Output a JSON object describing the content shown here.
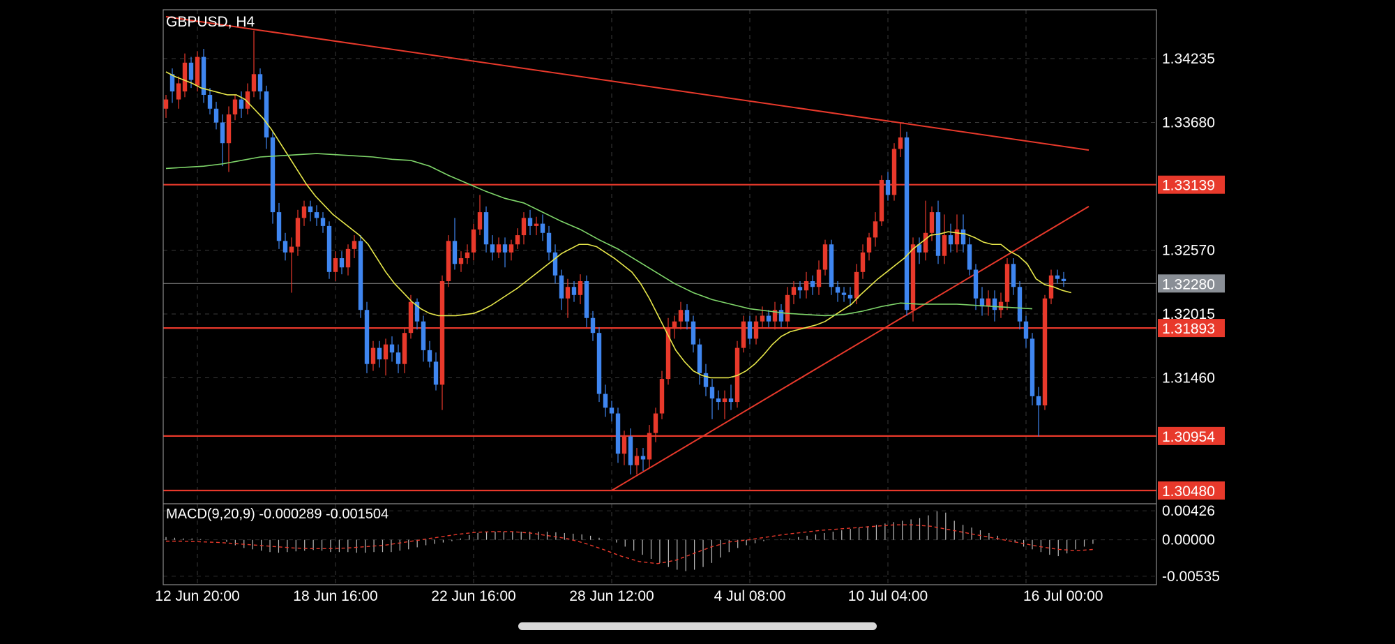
{
  "chart_data": {
    "type": "candlestick",
    "symbol_label": "GBPUSD, H4",
    "indicator_label": "MACD(9,20,9) -0.000289 -0.001504",
    "price_axis": {
      "ylim": [
        1.3048,
        1.3466
      ],
      "ticks": [
        "1.34235",
        "1.33680",
        "1.32570",
        "1.32015",
        "1.31460"
      ],
      "tick_values": [
        1.34235,
        1.3368,
        1.3257,
        1.32015,
        1.3146
      ]
    },
    "macd_axis": {
      "ylim": [
        -0.0066,
        0.0052
      ],
      "ticks": [
        "0.00426",
        "0.00000",
        "-0.00535"
      ],
      "tick_values": [
        0.00426,
        0.0,
        -0.00535
      ]
    },
    "x_axis": {
      "ticks": [
        "12 Jun 20:00",
        "18 Jun 16:00",
        "22 Jun 16:00",
        "28 Jun 12:00",
        "4 Jul 08:00",
        "10 Jul 04:00",
        "16 Jul 00:00"
      ],
      "tick_bar_index": [
        5,
        27,
        49,
        71,
        93,
        115,
        137
      ]
    },
    "horizontal_levels": [
      {
        "value": 1.33139,
        "label": "1.33139"
      },
      {
        "value": 1.31893,
        "label": "1.31893"
      },
      {
        "value": 1.30954,
        "label": "1.30954"
      },
      {
        "value": 1.3048,
        "label": "1.30480"
      }
    ],
    "current_price": {
      "value": 1.3228,
      "label": "1.32280"
    },
    "trendlines": [
      {
        "from": [
          0,
          1.346
        ],
        "to": [
          147,
          1.3344
        ]
      },
      {
        "from": [
          71,
          1.3048
        ],
        "to": [
          147,
          1.3295
        ]
      }
    ],
    "candles": [
      [
        1.338,
        1.3388,
        1.3372,
        1.3392
      ],
      [
        1.341,
        1.3395,
        1.3385,
        1.3415
      ],
      [
        1.3388,
        1.3402,
        1.338,
        1.3408
      ],
      [
        1.3395,
        1.342,
        1.339,
        1.3428
      ],
      [
        1.342,
        1.3405,
        1.3398,
        1.3425
      ],
      [
        1.34,
        1.3425,
        1.3395,
        1.343
      ],
      [
        1.3425,
        1.3392,
        1.3385,
        1.3432
      ],
      [
        1.3392,
        1.338,
        1.3375,
        1.3398
      ],
      [
        1.338,
        1.3368,
        1.3362,
        1.3386
      ],
      [
        1.3368,
        1.335,
        1.333,
        1.3375
      ],
      [
        1.335,
        1.3375,
        1.3325,
        1.3382
      ],
      [
        1.3375,
        1.3388,
        1.337,
        1.3392
      ],
      [
        1.3388,
        1.338,
        1.3372,
        1.3395
      ],
      [
        1.338,
        1.3395,
        1.3375,
        1.3402
      ],
      [
        1.3395,
        1.341,
        1.339,
        1.3448
      ],
      [
        1.341,
        1.3395,
        1.3388,
        1.3415
      ],
      [
        1.3395,
        1.3355,
        1.3345,
        1.34
      ],
      [
        1.3355,
        1.329,
        1.328,
        1.336
      ],
      [
        1.329,
        1.3265,
        1.3258,
        1.3298
      ],
      [
        1.3265,
        1.3255,
        1.3248,
        1.3272
      ],
      [
        1.3255,
        1.326,
        1.322,
        1.3268
      ],
      [
        1.326,
        1.3285,
        1.3252,
        1.3292
      ],
      [
        1.3285,
        1.3295,
        1.3278,
        1.33
      ],
      [
        1.3295,
        1.329,
        1.3282,
        1.33
      ],
      [
        1.329,
        1.3285,
        1.3278,
        1.3296
      ],
      [
        1.3285,
        1.3278,
        1.3272,
        1.329
      ],
      [
        1.3278,
        1.3238,
        1.3232,
        1.3282
      ],
      [
        1.3238,
        1.325,
        1.323,
        1.3256
      ],
      [
        1.325,
        1.3242,
        1.3236,
        1.3256
      ],
      [
        1.3242,
        1.3258,
        1.3235,
        1.3262
      ],
      [
        1.3258,
        1.3265,
        1.325,
        1.327
      ],
      [
        1.3265,
        1.3205,
        1.3198,
        1.327
      ],
      [
        1.3205,
        1.3158,
        1.315,
        1.3212
      ],
      [
        1.3158,
        1.3172,
        1.3152,
        1.3178
      ],
      [
        1.3172,
        1.3162,
        1.3155,
        1.3178
      ],
      [
        1.3162,
        1.3175,
        1.3148,
        1.318
      ],
      [
        1.3175,
        1.3168,
        1.316,
        1.3182
      ],
      [
        1.3168,
        1.3158,
        1.315,
        1.3175
      ],
      [
        1.3158,
        1.3185,
        1.315,
        1.319
      ],
      [
        1.3185,
        1.3212,
        1.318,
        1.3218
      ],
      [
        1.3212,
        1.3195,
        1.3188,
        1.3215
      ],
      [
        1.3195,
        1.317,
        1.316,
        1.32
      ],
      [
        1.317,
        1.316,
        1.3155,
        1.3178
      ],
      [
        1.316,
        1.314,
        1.3135,
        1.3168
      ],
      [
        1.314,
        1.323,
        1.3118,
        1.3235
      ],
      [
        1.323,
        1.3265,
        1.3225,
        1.327
      ],
      [
        1.3265,
        1.3245,
        1.324,
        1.3285
      ],
      [
        1.3245,
        1.325,
        1.3238,
        1.3256
      ],
      [
        1.325,
        1.3255,
        1.3245,
        1.3262
      ],
      [
        1.3255,
        1.3275,
        1.3248,
        1.328
      ],
      [
        1.3275,
        1.329,
        1.327,
        1.3305
      ],
      [
        1.329,
        1.3262,
        1.3255,
        1.3295
      ],
      [
        1.3262,
        1.3255,
        1.3248,
        1.327
      ],
      [
        1.3255,
        1.3262,
        1.325,
        1.3268
      ],
      [
        1.3262,
        1.3255,
        1.3242,
        1.3268
      ],
      [
        1.3255,
        1.3262,
        1.3248,
        1.3266
      ],
      [
        1.3262,
        1.327,
        1.3258,
        1.3276
      ],
      [
        1.327,
        1.3285,
        1.3262,
        1.329
      ],
      [
        1.3285,
        1.3278,
        1.327,
        1.3292
      ],
      [
        1.3278,
        1.328,
        1.327,
        1.3286
      ],
      [
        1.328,
        1.3272,
        1.3265,
        1.3288
      ],
      [
        1.3272,
        1.3255,
        1.3248,
        1.3278
      ],
      [
        1.3255,
        1.3235,
        1.3228,
        1.3262
      ],
      [
        1.3235,
        1.3215,
        1.3205,
        1.324
      ],
      [
        1.3215,
        1.3225,
        1.3198,
        1.3232
      ],
      [
        1.3225,
        1.3218,
        1.3212,
        1.323
      ],
      [
        1.3218,
        1.323,
        1.321,
        1.3236
      ],
      [
        1.323,
        1.3198,
        1.319,
        1.3235
      ],
      [
        1.3198,
        1.3185,
        1.3178,
        1.3204
      ],
      [
        1.3185,
        1.3132,
        1.3125,
        1.319
      ],
      [
        1.3132,
        1.312,
        1.3112,
        1.314
      ],
      [
        1.312,
        1.3115,
        1.3108,
        1.3126
      ],
      [
        1.3115,
        1.308,
        1.3072,
        1.312
      ],
      [
        1.308,
        1.3095,
        1.307,
        1.31
      ],
      [
        1.3095,
        1.307,
        1.3062,
        1.3102
      ],
      [
        1.307,
        1.3078,
        1.3062,
        1.3085
      ],
      [
        1.3078,
        1.3075,
        1.3065,
        1.3085
      ],
      [
        1.3075,
        1.3098,
        1.3068,
        1.3105
      ],
      [
        1.3098,
        1.3115,
        1.309,
        1.312
      ],
      [
        1.3115,
        1.3145,
        1.311,
        1.3152
      ],
      [
        1.3145,
        1.319,
        1.314,
        1.3198
      ],
      [
        1.319,
        1.3195,
        1.318,
        1.32
      ],
      [
        1.3195,
        1.3205,
        1.3188,
        1.3212
      ],
      [
        1.3205,
        1.3195,
        1.3188,
        1.321
      ],
      [
        1.3195,
        1.3175,
        1.3168,
        1.32
      ],
      [
        1.3175,
        1.315,
        1.314,
        1.318
      ],
      [
        1.315,
        1.3138,
        1.313,
        1.3158
      ],
      [
        1.3138,
        1.3128,
        1.311,
        1.3145
      ],
      [
        1.3128,
        1.3125,
        1.3118,
        1.3135
      ],
      [
        1.3125,
        1.3128,
        1.311,
        1.3135
      ],
      [
        1.3128,
        1.3125,
        1.3118,
        1.314
      ],
      [
        1.3125,
        1.3172,
        1.312,
        1.3178
      ],
      [
        1.3172,
        1.3195,
        1.3168,
        1.32
      ],
      [
        1.3195,
        1.318,
        1.3175,
        1.32
      ],
      [
        1.318,
        1.3195,
        1.3175,
        1.32
      ],
      [
        1.3195,
        1.32,
        1.319,
        1.3208
      ],
      [
        1.32,
        1.3195,
        1.319,
        1.3205
      ],
      [
        1.3195,
        1.3205,
        1.3188,
        1.3212
      ],
      [
        1.3205,
        1.3195,
        1.319,
        1.321
      ],
      [
        1.3195,
        1.3218,
        1.319,
        1.3225
      ],
      [
        1.3218,
        1.3225,
        1.321,
        1.323
      ],
      [
        1.3225,
        1.3222,
        1.3215,
        1.323
      ],
      [
        1.3222,
        1.323,
        1.3215,
        1.3238
      ],
      [
        1.323,
        1.3225,
        1.3218,
        1.3235
      ],
      [
        1.3225,
        1.324,
        1.3218,
        1.3248
      ],
      [
        1.324,
        1.3262,
        1.3235,
        1.3266
      ],
      [
        1.3262,
        1.3225,
        1.3218,
        1.3266
      ],
      [
        1.3225,
        1.322,
        1.3212,
        1.323
      ],
      [
        1.322,
        1.3218,
        1.3212,
        1.3225
      ],
      [
        1.3218,
        1.3215,
        1.3208,
        1.3225
      ],
      [
        1.3215,
        1.3238,
        1.321,
        1.3245
      ],
      [
        1.3238,
        1.3255,
        1.3232,
        1.3262
      ],
      [
        1.3255,
        1.3268,
        1.3248,
        1.3272
      ],
      [
        1.3268,
        1.3282,
        1.326,
        1.329
      ],
      [
        1.3282,
        1.3318,
        1.3278,
        1.3322
      ],
      [
        1.3318,
        1.3305,
        1.33,
        1.3325
      ],
      [
        1.3305,
        1.3345,
        1.33,
        1.335
      ],
      [
        1.3345,
        1.3355,
        1.3338,
        1.3368
      ],
      [
        1.3355,
        1.3205,
        1.32,
        1.336
      ],
      [
        1.3205,
        1.3262,
        1.3195,
        1.3268
      ],
      [
        1.3262,
        1.3255,
        1.3245,
        1.3268
      ],
      [
        1.3255,
        1.3272,
        1.3248,
        1.33
      ],
      [
        1.3272,
        1.329,
        1.3265,
        1.3295
      ],
      [
        1.329,
        1.3252,
        1.3245,
        1.33
      ],
      [
        1.3252,
        1.327,
        1.3245,
        1.3288
      ],
      [
        1.327,
        1.3262,
        1.3255,
        1.328
      ],
      [
        1.3262,
        1.3275,
        1.3255,
        1.3288
      ],
      [
        1.3275,
        1.3262,
        1.3255,
        1.3288
      ],
      [
        1.3262,
        1.324,
        1.3235,
        1.3268
      ],
      [
        1.324,
        1.3215,
        1.3205,
        1.3245
      ],
      [
        1.3215,
        1.3208,
        1.32,
        1.3225
      ],
      [
        1.3208,
        1.3215,
        1.32,
        1.3222
      ],
      [
        1.3215,
        1.3205,
        1.3195,
        1.3222
      ],
      [
        1.3205,
        1.3212,
        1.3198,
        1.322
      ],
      [
        1.3212,
        1.3245,
        1.3205,
        1.325
      ],
      [
        1.3245,
        1.3225,
        1.3218,
        1.325
      ],
      [
        1.3225,
        1.3195,
        1.3188,
        1.323
      ],
      [
        1.3195,
        1.318,
        1.3172,
        1.32
      ],
      [
        1.318,
        1.313,
        1.3122,
        1.3185
      ],
      [
        1.313,
        1.3122,
        1.3095,
        1.3138
      ],
      [
        1.3122,
        1.3215,
        1.3118,
        1.3218
      ],
      [
        1.3215,
        1.3235,
        1.321,
        1.324
      ],
      [
        1.3235,
        1.3232,
        1.3228,
        1.324
      ],
      [
        1.3232,
        1.323,
        1.3225,
        1.3238
      ]
    ],
    "sma_fast": [
      1.3412,
      1.3408,
      1.3405,
      1.3402,
      1.3398,
      1.3396,
      1.3394,
      1.3392,
      1.3392,
      1.3388,
      1.338,
      1.3372,
      1.3362,
      1.335,
      1.3338,
      1.3326,
      1.3314,
      1.3304,
      1.3296,
      1.3288,
      1.3282,
      1.3276,
      1.327,
      1.3262,
      1.325,
      1.3238,
      1.3228,
      1.322,
      1.3212,
      1.3206,
      1.3202,
      1.32,
      1.32,
      1.32,
      1.3201,
      1.3202,
      1.3205,
      1.3209,
      1.3214,
      1.3219,
      1.3224,
      1.323,
      1.3236,
      1.3242,
      1.3248,
      1.3254,
      1.3258,
      1.3262,
      1.3262,
      1.326,
      1.3255,
      1.325,
      1.3244,
      1.3238,
      1.3228,
      1.3215,
      1.32,
      1.3185,
      1.317,
      1.316,
      1.3152,
      1.3148,
      1.3146,
      1.3146,
      1.3146,
      1.3148,
      1.3152,
      1.3158,
      1.3166,
      1.3175,
      1.3182,
      1.3186,
      1.3188,
      1.319,
      1.3192,
      1.3195,
      1.32,
      1.3205,
      1.321,
      1.3218,
      1.3225,
      1.3232,
      1.3238,
      1.3244,
      1.325,
      1.3258,
      1.3264,
      1.327,
      1.3271,
      1.3273,
      1.3272,
      1.3271,
      1.3268,
      1.3264,
      1.3262,
      1.3262,
      1.3256,
      1.3252,
      1.3245,
      1.3232,
      1.3227,
      1.3225,
      1.3222,
      1.322
    ],
    "sma_slow": [
      1.3328,
      1.3329,
      1.333,
      1.3332,
      1.3335,
      1.3338,
      1.3339,
      1.334,
      1.3341,
      1.334,
      1.3339,
      1.3338,
      1.3336,
      1.3335,
      1.333,
      1.3322,
      1.3315,
      1.3308,
      1.3302,
      1.3298,
      1.329,
      1.3282,
      1.3275,
      1.3266,
      1.3258,
      1.3248,
      1.3238,
      1.3228,
      1.322,
      1.3214,
      1.321,
      1.3206,
      1.3204,
      1.3202,
      1.3201,
      1.32,
      1.3201,
      1.3204,
      1.3208,
      1.3211,
      1.321,
      1.321,
      1.321,
      1.3209,
      1.3208,
      1.3207,
      1.3206
    ],
    "macd_hist": [
      0.0004,
      0.0003,
      0.0002,
      0.0002,
      0.0001,
      0.0,
      0.0,
      -0.0003,
      -0.0008,
      -0.0012,
      -0.0014,
      -0.0016,
      -0.0018,
      -0.0019,
      -0.0018,
      -0.0017,
      -0.0016,
      -0.0015,
      -0.0016,
      -0.0018,
      -0.0018,
      -0.0018,
      -0.0019,
      -0.0019,
      -0.0018,
      -0.0018,
      -0.0018,
      -0.0016,
      -0.0014,
      -0.0011,
      -0.0008,
      -0.0006,
      -0.0004,
      -0.0002,
      0.0002,
      0.0007,
      0.001,
      0.0012,
      0.0012,
      0.0012,
      0.0012,
      0.0012,
      0.0012,
      0.0012,
      0.0012,
      0.0011,
      0.001,
      0.0009,
      0.0008,
      0.0006,
      0.0003,
      0.0,
      -0.0004,
      -0.001,
      -0.0016,
      -0.0022,
      -0.0028,
      -0.0034,
      -0.004,
      -0.0044,
      -0.0046,
      -0.0044,
      -0.004,
      -0.0034,
      -0.0026,
      -0.0018,
      -0.0012,
      -0.0008,
      -0.0005,
      -0.0002,
      0.0,
      0.0001,
      0.0002,
      0.0004,
      0.0006,
      0.0008,
      0.001,
      0.0012,
      0.0014,
      0.0016,
      0.0018,
      0.002,
      0.0022,
      0.0024,
      0.0026,
      0.0028,
      0.003,
      0.0032,
      0.0036,
      0.0042,
      0.004,
      0.0028,
      0.0022,
      0.0018,
      0.0014,
      0.001,
      0.0006,
      0.0002,
      -0.0004,
      -0.001,
      -0.0014,
      -0.0018,
      -0.0022,
      -0.0024,
      -0.002,
      -0.0014,
      -0.001,
      -0.0006
    ],
    "macd_signal": [
      -0.0002,
      -0.0002,
      -0.0003,
      -0.0004,
      -0.0006,
      -0.0008,
      -0.001,
      -0.0012,
      -0.0013,
      -0.0013,
      -0.0012,
      -0.001,
      -0.0008,
      -0.0004,
      0.0,
      0.0004,
      0.0008,
      0.0011,
      0.0012,
      0.0012,
      0.001,
      0.0006,
      0.0002,
      -0.0005,
      -0.0014,
      -0.0024,
      -0.0032,
      -0.0035,
      -0.003,
      -0.002,
      -0.001,
      -0.0003,
      0.0,
      0.0004,
      0.0008,
      0.0011,
      0.0014,
      0.0016,
      0.0018,
      0.002,
      0.0022,
      0.0022,
      0.002,
      0.0015,
      0.001,
      0.0005,
      0.0,
      -0.0005,
      -0.001,
      -0.0014,
      -0.0016,
      -0.0014
    ]
  }
}
